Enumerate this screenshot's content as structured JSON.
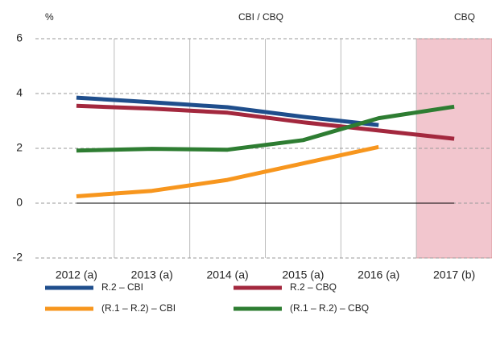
{
  "chart_data": {
    "type": "line",
    "ylabel": "%",
    "annotations": [
      "CBI / CBQ",
      "CBQ"
    ],
    "categories": [
      "2012 (a)",
      "2013 (a)",
      "2014 (a)",
      "2015 (a)",
      "2016 (a)",
      "2017 (b)"
    ],
    "series": [
      {
        "name": "R.2 – CBI",
        "color": "#1f4e8c",
        "values": [
          3.85,
          3.68,
          3.5,
          3.15,
          2.85,
          null
        ]
      },
      {
        "name": "R.2 – CBQ",
        "color": "#a3283e",
        "values": [
          3.55,
          3.45,
          3.3,
          2.95,
          2.65,
          2.35
        ]
      },
      {
        "name": "(R.1 – R.2) – CBI",
        "color": "#f7961e",
        "values": [
          0.25,
          0.45,
          0.85,
          1.45,
          2.05,
          null
        ]
      },
      {
        "name": "(R.1 – R.2) – CBQ",
        "color": "#2e7d32",
        "values": [
          1.92,
          1.98,
          1.95,
          2.3,
          3.1,
          3.52
        ]
      }
    ],
    "ylim": [
      -2,
      6
    ],
    "yticks": [
      -2,
      0,
      2,
      4,
      6
    ],
    "grid": true,
    "highlight_category_index": 5,
    "highlight_color": "#f2c6ce"
  }
}
